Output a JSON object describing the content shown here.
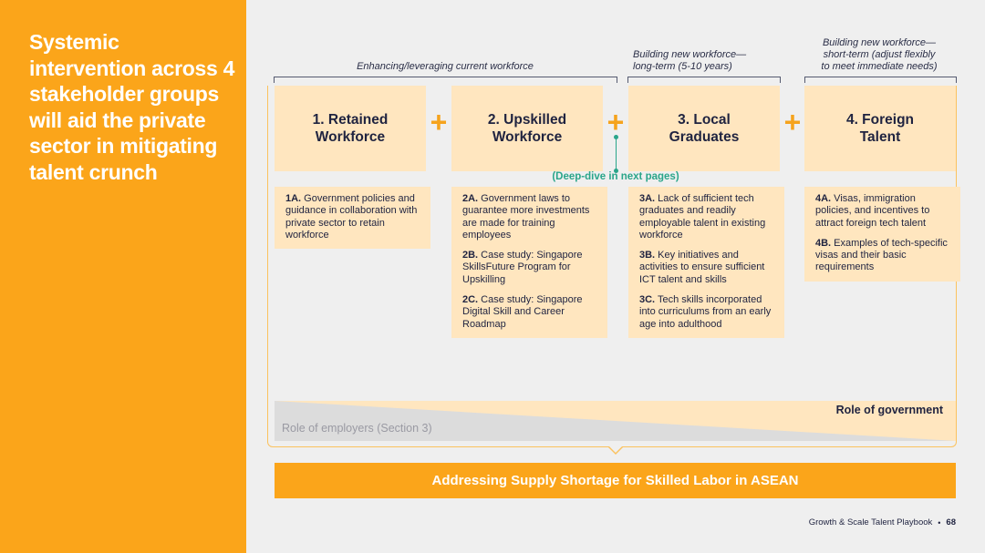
{
  "sidebar": {
    "title": "Systemic intervention across 4 stakeholder groups will aid the private sector in mitigating talent crunch"
  },
  "brackets": {
    "current": "Enhancing/leveraging current workforce",
    "long_term_line1": "Building new workforce—",
    "long_term_line2": "long-term (5-10 years)",
    "short_term_line1": "Building new workforce—",
    "short_term_line2": "short-term (adjust flexibly",
    "short_term_line3": "to meet immediate needs)"
  },
  "groups": [
    {
      "title_line1": "1. Retained",
      "title_line2": "Workforce"
    },
    {
      "title_line1": "2. Upskilled",
      "title_line2": "Workforce"
    },
    {
      "title_line1": "3. Local",
      "title_line2": "Graduates"
    },
    {
      "title_line1": "4. Foreign",
      "title_line2": "Talent"
    }
  ],
  "plus_symbol": "+",
  "deep_dive": "(Deep-dive in next pages)",
  "details": {
    "g1": [
      {
        "code": "1A.",
        "text": " Government policies and guidance in collaboration with private sector to retain workforce"
      }
    ],
    "g2": [
      {
        "code": "2A.",
        "text": " Government laws to guarantee more investments are made for training employees"
      },
      {
        "code": "2B.",
        "text": " Case study: Singapore SkillsFuture Program for Upskilling"
      },
      {
        "code": "2C.",
        "text": " Case study: Singapore Digital Skill and Career Roadmap"
      }
    ],
    "g3": [
      {
        "code": "3A.",
        "text": " Lack of sufficient tech graduates and readily employable talent in existing workforce"
      },
      {
        "code": "3B.",
        "text": " Key initiatives and activities to ensure sufficient ICT talent and skills"
      },
      {
        "code": "3C.",
        "text": " Tech skills incorporated into curriculums from an early age into adulthood"
      }
    ],
    "g4": [
      {
        "code": "4A.",
        "text": " Visas, immigration policies, and incentives to attract foreign tech talent"
      },
      {
        "code": "4B.",
        "text": " Examples of tech-specific visas and their basic requirements"
      }
    ]
  },
  "roles": {
    "government": "Role of government",
    "employers": "Role of employers (Section 3)"
  },
  "banner": "Addressing Supply Shortage for Skilled Labor in ASEAN",
  "footer": {
    "publication": "Growth & Scale Talent Playbook",
    "separator": "•",
    "page": "68"
  },
  "colors": {
    "accent": "#fba51a",
    "box_fill": "#ffe6bf",
    "teal": "#2aa58a",
    "text_dark": "#1f2340"
  }
}
